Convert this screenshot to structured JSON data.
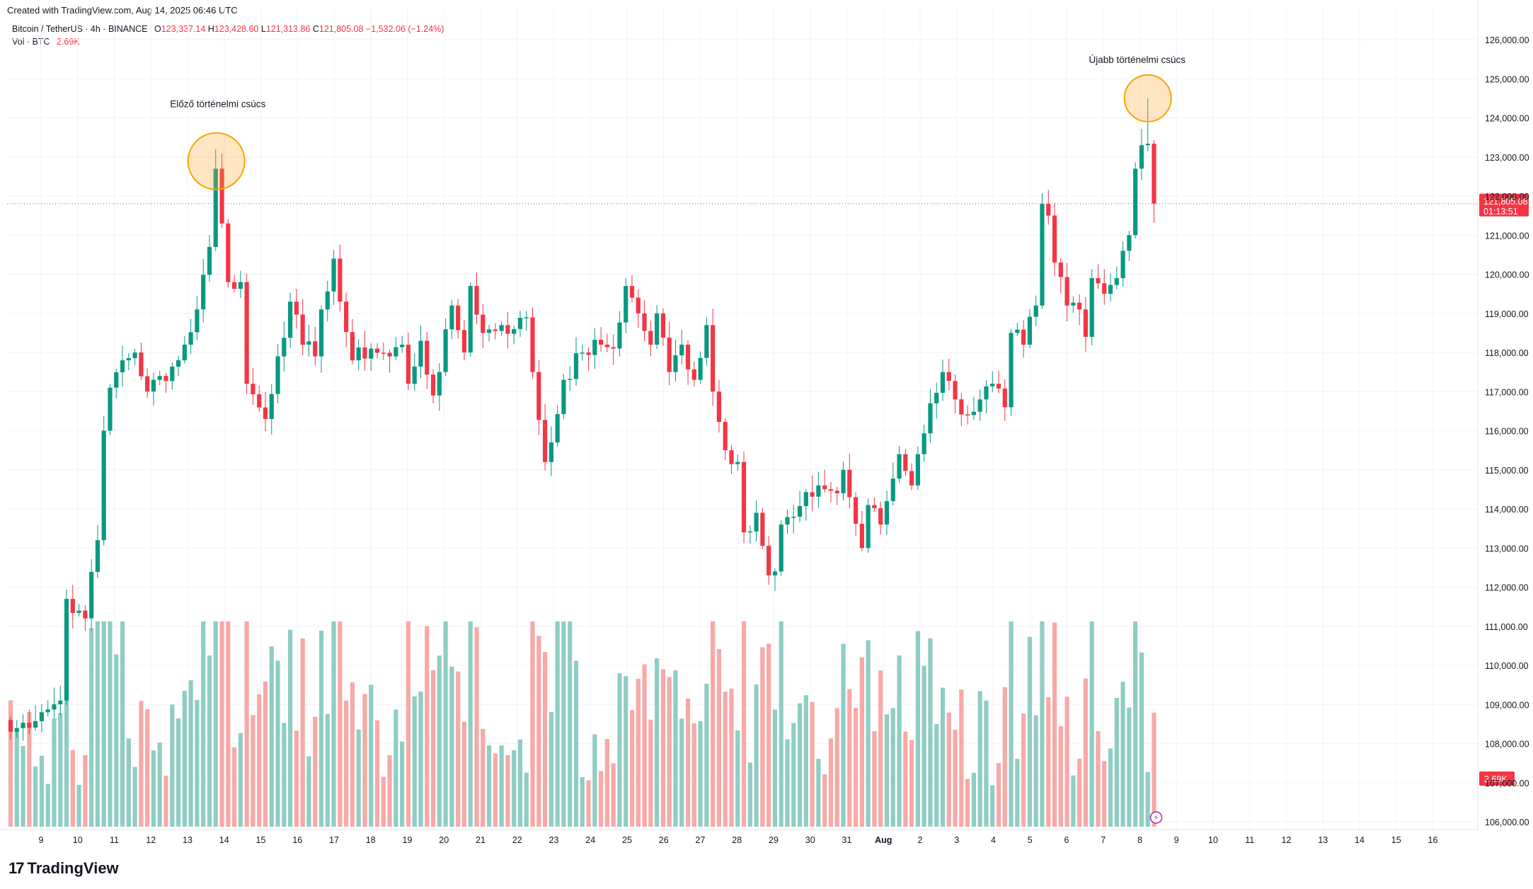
{
  "header": {
    "created_text": "Created with TradingView.com, Aug 14, 2025 06:46 UTC"
  },
  "legend": {
    "symbol": "Bitcoin / TetherUS · 4h · BINANCE",
    "open_label": "O",
    "open_value": "123,337.14",
    "high_label": "H",
    "high_value": "123,428.60",
    "low_label": "L",
    "low_value": "121,313.86",
    "close_label": "C",
    "close_value": "121,805.08",
    "change": "−1,532.06 (−1.24%)",
    "volume_label": "Vol · BTC",
    "volume_value": "2.69K"
  },
  "colors": {
    "up": "#089981",
    "down": "#f23645",
    "up_vol": "#8fcdc4",
    "down_vol": "#f7a9a7",
    "accent": "#f7a600"
  },
  "footer": {
    "logo_text": "TradingView"
  },
  "chart_data": {
    "type": "candlestick",
    "title": "Bitcoin / TetherUS · 4h · BINANCE",
    "ylim": [
      105500,
      126500
    ],
    "yticks": [
      "126,000.00",
      "125,000.00",
      "124,000.00",
      "123,000.00",
      "122,000.00",
      "121,000.00",
      "120,000.00",
      "119,000.00",
      "118,000.00",
      "117,000.00",
      "116,000.00",
      "115,000.00",
      "114,000.00",
      "113,000.00",
      "112,000.00",
      "111,000.00",
      "110,000.00",
      "109,000.00",
      "108,000.00",
      "107,000.00",
      "106,000.00"
    ],
    "xticks": [
      "9",
      "10",
      "11",
      "12",
      "13",
      "14",
      "15",
      "16",
      "17",
      "18",
      "19",
      "20",
      "21",
      "22",
      "23",
      "24",
      "25",
      "26",
      "27",
      "28",
      "29",
      "30",
      "31",
      "Aug",
      "2",
      "3",
      "4",
      "5",
      "6",
      "7",
      "8",
      "9",
      "10",
      "11",
      "12",
      "13",
      "14",
      "15",
      "16"
    ],
    "last_price": "121,805.08",
    "countdown": "01:13:51",
    "last_volume": "2.69K",
    "annotations": [
      "Előző történelmi csúcs",
      "Újabb történelmi csúcs"
    ],
    "anchors": [
      {
        "i": 0,
        "c": 108300
      },
      {
        "i": 5,
        "c": 108800
      },
      {
        "i": 8,
        "c": 109100
      },
      {
        "i": 9,
        "c": 111700
      },
      {
        "i": 11,
        "c": 111400
      },
      {
        "i": 12,
        "c": 111200
      },
      {
        "i": 14,
        "c": 113200
      },
      {
        "i": 15,
        "c": 116000
      },
      {
        "i": 16,
        "c": 117100
      },
      {
        "i": 18,
        "c": 117800
      },
      {
        "i": 20,
        "c": 118000
      },
      {
        "i": 22,
        "c": 117000
      },
      {
        "i": 27,
        "c": 117800
      },
      {
        "i": 28,
        "c": 118200
      },
      {
        "i": 30,
        "c": 119100
      },
      {
        "i": 32,
        "c": 120700
      },
      {
        "i": 33,
        "c": 122700
      },
      {
        "i": 34,
        "c": 121300
      },
      {
        "i": 35,
        "c": 119800
      },
      {
        "i": 37,
        "c": 119800
      },
      {
        "i": 38,
        "c": 117200
      },
      {
        "i": 41,
        "c": 116300
      },
      {
        "i": 43,
        "c": 117900
      },
      {
        "i": 45,
        "c": 119300
      },
      {
        "i": 47,
        "c": 118200
      },
      {
        "i": 49,
        "c": 117900
      },
      {
        "i": 50,
        "c": 119100
      },
      {
        "i": 52,
        "c": 120400
      },
      {
        "i": 53,
        "c": 119300
      },
      {
        "i": 55,
        "c": 117800
      },
      {
        "i": 58,
        "c": 118100
      },
      {
        "i": 61,
        "c": 117900
      },
      {
        "i": 63,
        "c": 118200
      },
      {
        "i": 64,
        "c": 117200
      },
      {
        "i": 66,
        "c": 118300
      },
      {
        "i": 68,
        "c": 116900
      },
      {
        "i": 69,
        "c": 117500
      },
      {
        "i": 71,
        "c": 119200
      },
      {
        "i": 73,
        "c": 118000
      },
      {
        "i": 74,
        "c": 119700
      },
      {
        "i": 76,
        "c": 118500
      },
      {
        "i": 79,
        "c": 118700
      },
      {
        "i": 81,
        "c": 118600
      },
      {
        "i": 83,
        "c": 118900
      },
      {
        "i": 84,
        "c": 117500
      },
      {
        "i": 86,
        "c": 115200
      },
      {
        "i": 87,
        "c": 115700
      },
      {
        "i": 89,
        "c": 117300
      },
      {
        "i": 92,
        "c": 118000
      },
      {
        "i": 95,
        "c": 118200
      },
      {
        "i": 97,
        "c": 118100
      },
      {
        "i": 99,
        "c": 119700
      },
      {
        "i": 101,
        "c": 119000
      },
      {
        "i": 103,
        "c": 118200
      },
      {
        "i": 104,
        "c": 119000
      },
      {
        "i": 106,
        "c": 117500
      },
      {
        "i": 108,
        "c": 118200
      },
      {
        "i": 110,
        "c": 117300
      },
      {
        "i": 112,
        "c": 118700
      },
      {
        "i": 113,
        "c": 117000
      },
      {
        "i": 115,
        "c": 115500
      },
      {
        "i": 117,
        "c": 115200
      },
      {
        "i": 118,
        "c": 113400
      },
      {
        "i": 120,
        "c": 113900
      },
      {
        "i": 122,
        "c": 112300
      },
      {
        "i": 123,
        "c": 112400
      },
      {
        "i": 124,
        "c": 113600
      },
      {
        "i": 126,
        "c": 113800
      },
      {
        "i": 130,
        "c": 114600
      },
      {
        "i": 133,
        "c": 114400
      },
      {
        "i": 134,
        "c": 115000
      },
      {
        "i": 135,
        "c": 114300
      },
      {
        "i": 137,
        "c": 113000
      },
      {
        "i": 138,
        "c": 114100
      },
      {
        "i": 140,
        "c": 113600
      },
      {
        "i": 141,
        "c": 114200
      },
      {
        "i": 143,
        "c": 115400
      },
      {
        "i": 145,
        "c": 114600
      },
      {
        "i": 146,
        "c": 115400
      },
      {
        "i": 148,
        "c": 116700
      },
      {
        "i": 150,
        "c": 117500
      },
      {
        "i": 152,
        "c": 116800
      },
      {
        "i": 154,
        "c": 116400
      },
      {
        "i": 156,
        "c": 116800
      },
      {
        "i": 158,
        "c": 117200
      },
      {
        "i": 160,
        "c": 116600
      },
      {
        "i": 161,
        "c": 118500
      },
      {
        "i": 163,
        "c": 118200
      },
      {
        "i": 165,
        "c": 119200
      },
      {
        "i": 166,
        "c": 121800
      },
      {
        "i": 167,
        "c": 121500
      },
      {
        "i": 168,
        "c": 120300
      },
      {
        "i": 170,
        "c": 119200
      },
      {
        "i": 172,
        "c": 119100
      },
      {
        "i": 173,
        "c": 118400
      },
      {
        "i": 174,
        "c": 119900
      },
      {
        "i": 176,
        "c": 119500
      },
      {
        "i": 178,
        "c": 119900
      },
      {
        "i": 179,
        "c": 120600
      },
      {
        "i": 180,
        "c": 121000
      },
      {
        "i": 181,
        "c": 122700
      },
      {
        "i": 182,
        "c": 123300
      },
      {
        "i": 183,
        "c": 123337.14
      },
      {
        "i": 184,
        "c": 121805.08
      }
    ],
    "highlight_highs": [
      {
        "i": 33,
        "h": 123200
      },
      {
        "i": 183,
        "h": 124500
      }
    ],
    "highlight_lows": [
      {
        "i": 123,
        "l": 111900
      }
    ],
    "volume_spikes": [
      {
        "i": 16,
        "v": 2900
      },
      {
        "i": 17,
        "v": 1300
      },
      {
        "i": 18,
        "v": 2500
      },
      {
        "i": 34,
        "v": 1700
      },
      {
        "i": 38,
        "v": 2200
      },
      {
        "i": 40,
        "v": 1000
      },
      {
        "i": 88,
        "v": 3100
      },
      {
        "i": 89,
        "v": 2700
      },
      {
        "i": 90,
        "v": 1900
      },
      {
        "i": 166,
        "v": 1900
      },
      {
        "i": 181,
        "v": 1800
      },
      {
        "i": 180,
        "v": 900
      }
    ]
  }
}
